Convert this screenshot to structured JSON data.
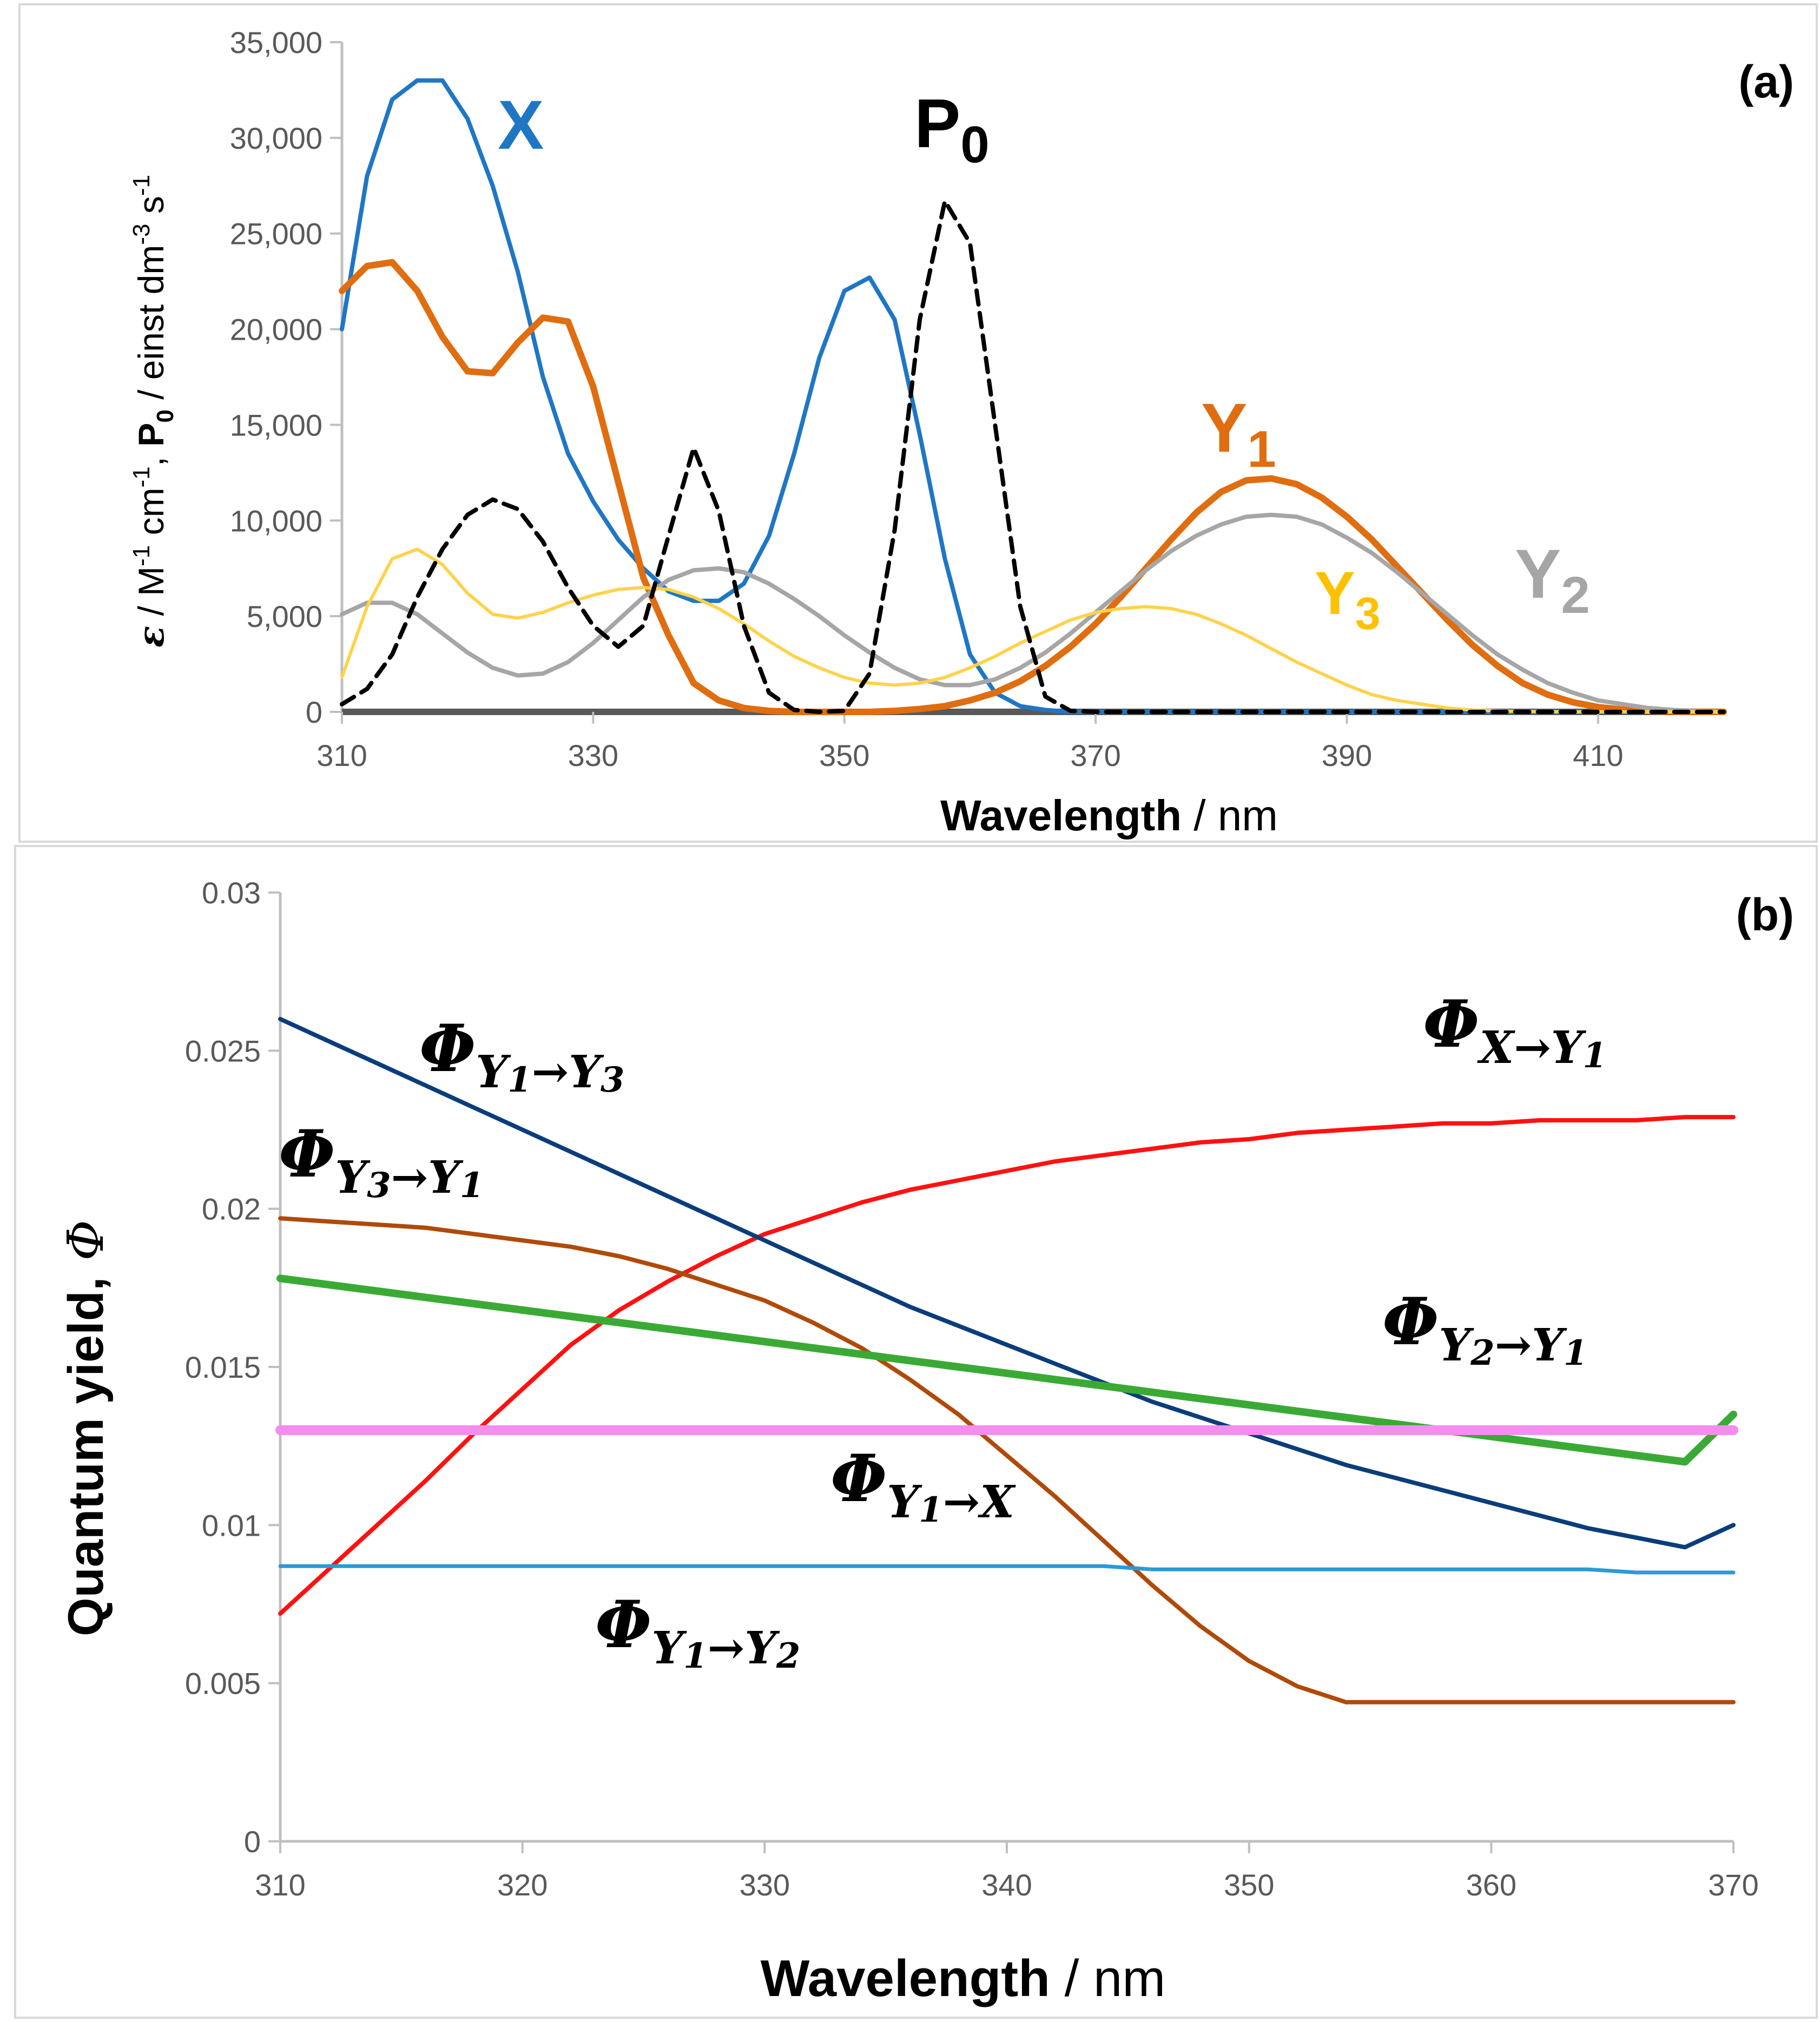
{
  "chart_data": [
    {
      "type": "line",
      "panel": "(a)",
      "xlabel_bold": "Wavelength",
      "xlabel_unit": " / nm",
      "ylabel_parts": {
        "epsilon": "ε",
        "unit_a": " / M",
        "exp_a": "-1",
        "unit_b": " cm",
        "exp_b": "-1",
        "sep": ", ",
        "p": "P",
        "p_sub": "0",
        "unit_c": " / einst dm",
        "exp_c": "-3",
        "unit_d": " s",
        "exp_d": "-1"
      },
      "xlim": [
        310,
        420
      ],
      "ylim": [
        0,
        35000
      ],
      "xticks": [
        310,
        330,
        350,
        370,
        390,
        410
      ],
      "xtick_labels": [
        "310",
        "330",
        "350",
        "370",
        "390",
        "410"
      ],
      "yticks": [
        0,
        5000,
        10000,
        15000,
        20000,
        25000,
        30000,
        35000
      ],
      "ytick_labels": [
        "0",
        "5,000",
        "10,000",
        "15,000",
        "20,000",
        "25,000",
        "30,000",
        "35,000"
      ],
      "x": [
        310,
        312,
        314,
        316,
        318,
        320,
        322,
        324,
        326,
        328,
        330,
        332,
        334,
        336,
        338,
        340,
        342,
        344,
        346,
        348,
        350,
        352,
        354,
        356,
        358,
        360,
        362,
        364,
        366,
        368,
        370,
        372,
        374,
        376,
        378,
        380,
        382,
        384,
        386,
        388,
        390,
        392,
        394,
        396,
        398,
        400,
        402,
        404,
        406,
        408,
        410,
        412,
        414,
        416,
        418,
        420
      ],
      "series": [
        {
          "name": "X",
          "label": "X",
          "subscript": "",
          "color": "#1f77c4",
          "dash": "solid",
          "width": 8,
          "values": [
            20000,
            28000,
            32000,
            33000,
            33000,
            31000,
            27500,
            23000,
            17500,
            13500,
            11000,
            9000,
            7500,
            6300,
            5800,
            5800,
            6700,
            9200,
            13500,
            18500,
            22000,
            22700,
            20500,
            14500,
            8000,
            3000,
            1000,
            300,
            100,
            0,
            0,
            0,
            0,
            0,
            0,
            0,
            0,
            0,
            0,
            0,
            0,
            0,
            0,
            0,
            0,
            0,
            0,
            0,
            0,
            0,
            0,
            0,
            0,
            0,
            0,
            0
          ]
        },
        {
          "name": "Y1",
          "label": "Y",
          "subscript": "1",
          "color": "#e06d10",
          "dash": "solid",
          "width": 12,
          "values": [
            22000,
            23300,
            23500,
            22000,
            19600,
            17800,
            17700,
            19300,
            20600,
            20400,
            17000,
            12000,
            7000,
            4000,
            1500,
            600,
            200,
            50,
            0,
            0,
            0,
            0,
            50,
            150,
            300,
            600,
            1000,
            1600,
            2400,
            3400,
            4600,
            6000,
            7500,
            9000,
            10400,
            11500,
            12100,
            12200,
            11900,
            11200,
            10200,
            9000,
            7600,
            6200,
            4800,
            3500,
            2400,
            1500,
            900,
            500,
            250,
            120,
            50,
            20,
            10,
            0
          ]
        },
        {
          "name": "Y2",
          "label": "Y",
          "subscript": "2",
          "color": "#a6a6a6",
          "dash": "solid",
          "width": 8,
          "values": [
            5100,
            5700,
            5700,
            5100,
            4100,
            3100,
            2300,
            1900,
            2000,
            2600,
            3600,
            4800,
            6000,
            6900,
            7400,
            7500,
            7300,
            6700,
            5900,
            5000,
            4000,
            3100,
            2300,
            1700,
            1400,
            1400,
            1700,
            2300,
            3100,
            4100,
            5200,
            6300,
            7400,
            8400,
            9200,
            9800,
            10200,
            10300,
            10200,
            9800,
            9100,
            8300,
            7300,
            6200,
            5100,
            4000,
            3000,
            2200,
            1500,
            1000,
            600,
            400,
            200,
            100,
            50,
            0
          ]
        },
        {
          "name": "Y3",
          "label": "Y",
          "subscript": "3",
          "color": "#ffd24a",
          "dash": "solid",
          "width": 6,
          "values": [
            1800,
            5500,
            8000,
            8500,
            7700,
            6200,
            5100,
            4900,
            5200,
            5700,
            6100,
            6400,
            6500,
            6400,
            6000,
            5400,
            4600,
            3700,
            2900,
            2300,
            1800,
            1500,
            1400,
            1500,
            1800,
            2300,
            2900,
            3600,
            4200,
            4800,
            5200,
            5400,
            5500,
            5400,
            5100,
            4600,
            4000,
            3300,
            2600,
            2000,
            1400,
            900,
            600,
            400,
            200,
            100,
            50,
            20,
            10,
            0,
            0,
            0,
            0,
            0,
            0,
            0
          ]
        },
        {
          "name": "P0",
          "label": "P",
          "subscript": "0",
          "color": "#000000",
          "dash": "dashed",
          "width": 8,
          "values": [
            400,
            1200,
            3000,
            6000,
            8500,
            10300,
            11100,
            10600,
            8900,
            6500,
            4500,
            3400,
            4500,
            9200,
            13800,
            10500,
            4500,
            1000,
            100,
            0,
            50,
            2000,
            9500,
            20500,
            26700,
            24500,
            15000,
            5500,
            800,
            50,
            0,
            0,
            0,
            0,
            0,
            0,
            0,
            0,
            0,
            0,
            0,
            0,
            0,
            0,
            0,
            0,
            0,
            0,
            0,
            0,
            0,
            0,
            0,
            0,
            0,
            0
          ]
        }
      ]
    },
    {
      "type": "line",
      "panel": "(b)",
      "xlabel_bold": "Wavelength",
      "xlabel_unit": " / nm",
      "ylabel_bold": "Quantum yield,",
      "ylabel_symbol": "Φ",
      "xlim": [
        310,
        370
      ],
      "ylim": [
        0,
        0.03
      ],
      "xticks": [
        310,
        320,
        330,
        340,
        350,
        360,
        370
      ],
      "xtick_labels": [
        "310",
        "320",
        "330",
        "340",
        "350",
        "360",
        "370"
      ],
      "yticks": [
        0,
        0.005,
        0.01,
        0.015,
        0.02,
        0.025,
        0.03
      ],
      "ytick_labels": [
        "0",
        "0.005",
        "0.01",
        "0.015",
        "0.02",
        "0.025",
        "0.03"
      ],
      "x": [
        310,
        312,
        314,
        316,
        318,
        320,
        322,
        324,
        326,
        328,
        330,
        332,
        334,
        336,
        338,
        340,
        342,
        344,
        346,
        348,
        350,
        352,
        354,
        356,
        358,
        360,
        362,
        364,
        366,
        368,
        370
      ],
      "series": [
        {
          "name": "Φ_{X→Y1}",
          "phi": "Φ",
          "sub_from": "X",
          "arrow": "→",
          "sub_to": "Y",
          "sub_to_index": "1",
          "color": "#ff1111",
          "width": 8,
          "values": [
            0.0072,
            0.0086,
            0.01,
            0.0114,
            0.0129,
            0.0143,
            0.0157,
            0.0168,
            0.0177,
            0.0185,
            0.0192,
            0.0197,
            0.0202,
            0.0206,
            0.0209,
            0.0212,
            0.0215,
            0.0217,
            0.0219,
            0.0221,
            0.0222,
            0.0224,
            0.0225,
            0.0226,
            0.0227,
            0.0227,
            0.0228,
            0.0228,
            0.0228,
            0.0229,
            0.0229
          ]
        },
        {
          "name": "Φ_{Y1→Y3}",
          "phi": "Φ",
          "sub_from": "Y",
          "sub_from_index": "1",
          "arrow": "→",
          "sub_to": "Y",
          "sub_to_index": "3",
          "color": "#0b3d7a",
          "width": 8,
          "values": [
            0.026,
            0.0253,
            0.0246,
            0.0239,
            0.0232,
            0.0225,
            0.0218,
            0.0211,
            0.0204,
            0.0197,
            0.019,
            0.0183,
            0.0176,
            0.0169,
            0.0163,
            0.0157,
            0.0151,
            0.0145,
            0.0139,
            0.0134,
            0.0129,
            0.0124,
            0.0119,
            0.0115,
            0.0111,
            0.0107,
            0.0103,
            0.0099,
            0.0096,
            0.0093,
            0.01
          ]
        },
        {
          "name": "Φ_{Y3→Y1}",
          "phi": "Φ",
          "sub_from": "Y",
          "sub_from_index": "3",
          "arrow": "→",
          "sub_to": "Y",
          "sub_to_index": "1",
          "color": "#b04a0a",
          "width": 8,
          "values": [
            0.0197,
            0.0196,
            0.0195,
            0.0194,
            0.0192,
            0.019,
            0.0188,
            0.0185,
            0.0181,
            0.0176,
            0.0171,
            0.0164,
            0.0156,
            0.0146,
            0.0135,
            0.0122,
            0.0109,
            0.0095,
            0.0081,
            0.0068,
            0.0057,
            0.0049,
            0.0044,
            0.0044,
            0.0044,
            0.0044,
            0.0044,
            0.0044,
            0.0044,
            0.0044,
            0.0044
          ]
        },
        {
          "name": "Φ_{Y2→Y1}",
          "phi": "Φ",
          "sub_from": "Y",
          "sub_from_index": "2",
          "arrow": "→",
          "sub_to": "Y",
          "sub_to_index": "1",
          "color": "#3aaa35",
          "width": 14,
          "values": [
            0.0178,
            0.0176,
            0.0174,
            0.0172,
            0.017,
            0.0168,
            0.0166,
            0.0164,
            0.0162,
            0.016,
            0.0158,
            0.0156,
            0.0154,
            0.0152,
            0.015,
            0.0148,
            0.0146,
            0.0144,
            0.0142,
            0.014,
            0.0138,
            0.0136,
            0.0134,
            0.0132,
            0.013,
            0.0128,
            0.0126,
            0.0124,
            0.0122,
            0.012,
            0.0135
          ]
        },
        {
          "name": "Φ_{Y1→X}",
          "phi": "Φ",
          "sub_from": "Y",
          "sub_from_index": "1",
          "arrow": "→",
          "sub_to": "X",
          "color": "#f58cf0",
          "width": 18,
          "values": [
            0.013,
            0.013,
            0.013,
            0.013,
            0.013,
            0.013,
            0.013,
            0.013,
            0.013,
            0.013,
            0.013,
            0.013,
            0.013,
            0.013,
            0.013,
            0.013,
            0.013,
            0.013,
            0.013,
            0.013,
            0.013,
            0.013,
            0.013,
            0.013,
            0.013,
            0.013,
            0.013,
            0.013,
            0.013,
            0.013,
            0.013
          ]
        },
        {
          "name": "Φ_{Y1→Y2}",
          "phi": "Φ",
          "sub_from": "Y",
          "sub_from_index": "1",
          "arrow": "→",
          "sub_to": "Y",
          "sub_to_index": "2",
          "color": "#2b9ad8",
          "width": 7,
          "values": [
            0.0087,
            0.0087,
            0.0087,
            0.0087,
            0.0087,
            0.0087,
            0.0087,
            0.0087,
            0.0087,
            0.0087,
            0.0087,
            0.0087,
            0.0087,
            0.0087,
            0.0087,
            0.0087,
            0.0087,
            0.0087,
            0.0086,
            0.0086,
            0.0086,
            0.0086,
            0.0086,
            0.0086,
            0.0086,
            0.0086,
            0.0086,
            0.0086,
            0.0085,
            0.0085,
            0.0085
          ]
        }
      ]
    }
  ]
}
